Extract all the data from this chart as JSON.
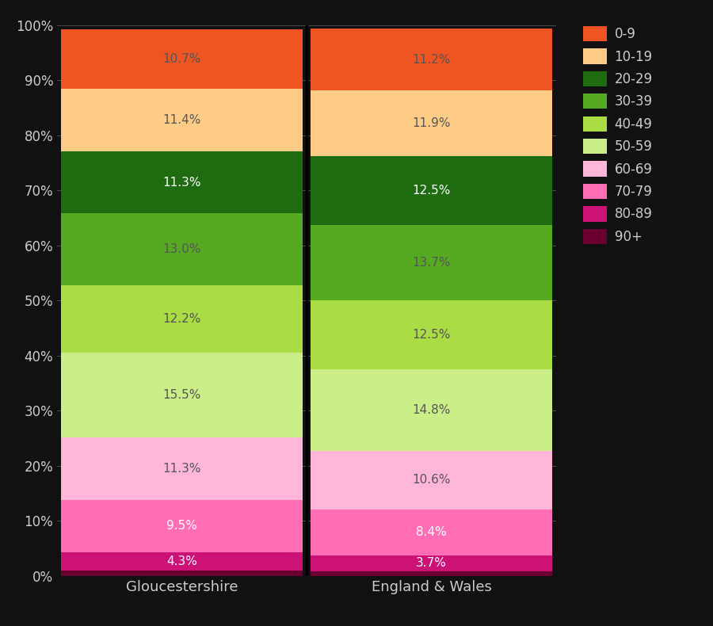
{
  "categories": [
    "Gloucestershire",
    "England & Wales"
  ],
  "age_groups": [
    "90+",
    "80-89",
    "70-79",
    "60-69",
    "50-59",
    "40-49",
    "30-39",
    "20-29",
    "10-19",
    "0-9"
  ],
  "values": {
    "Gloucestershire": [
      1.0,
      3.3,
      9.5,
      11.3,
      15.5,
      12.2,
      13.0,
      11.3,
      11.4,
      10.7
    ],
    "England & Wales": [
      0.9,
      2.8,
      8.4,
      10.6,
      14.8,
      12.5,
      13.7,
      12.5,
      11.9,
      11.2
    ]
  },
  "labels": {
    "Gloucestershire": [
      "",
      "4.3%",
      "9.5%",
      "11.3%",
      "15.5%",
      "12.2%",
      "13.0%",
      "11.3%",
      "11.4%",
      "10.7%"
    ],
    "England & Wales": [
      "",
      "3.7%",
      "8.4%",
      "10.6%",
      "14.8%",
      "12.5%",
      "13.7%",
      "12.5%",
      "11.9%",
      "11.2%"
    ]
  },
  "colors": [
    "#6b0030",
    "#cc1177",
    "#ff6eb4",
    "#ffb6d9",
    "#ccee88",
    "#aadd44",
    "#55aa22",
    "#1e6b10",
    "#ffcc88",
    "#ee5522"
  ],
  "background_color": "#111111",
  "text_color": "#cccccc",
  "legend_labels": [
    "0-9",
    "10-19",
    "20-29",
    "30-39",
    "40-49",
    "50-59",
    "60-69",
    "70-79",
    "80-89",
    "90+"
  ],
  "legend_colors": [
    "#ee5522",
    "#ffcc88",
    "#1e6b10",
    "#55aa22",
    "#aadd44",
    "#ccee88",
    "#ffb6d9",
    "#ff6eb4",
    "#cc1177",
    "#6b0030"
  ]
}
